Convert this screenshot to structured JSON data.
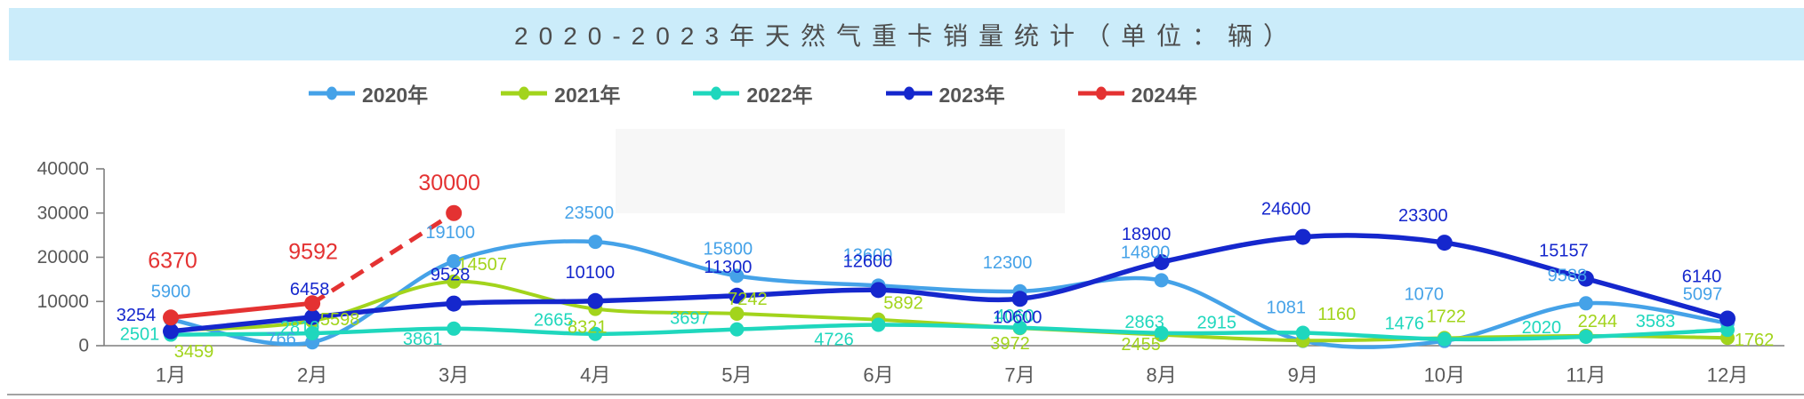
{
  "banner": {
    "title": "2020-2023年天然气重卡销量统计（单位：辆）",
    "bg_color": "#cbecfa",
    "text_color": "#4d4d4d"
  },
  "chart_data": {
    "type": "line",
    "title": "2020-2023年天然气重卡销量统计（单位：辆）",
    "categories": [
      "1月",
      "2月",
      "3月",
      "4月",
      "5月",
      "6月",
      "7月",
      "8月",
      "9月",
      "10月",
      "11月",
      "12月"
    ],
    "series": [
      {
        "name": "2020年",
        "color": "#45a2e8",
        "line_style": "solid",
        "values": [
          5900,
          766,
          19100,
          23500,
          15800,
          13600,
          12300,
          14800,
          1081,
          1070,
          9588,
          5097
        ]
      },
      {
        "name": "2021年",
        "color": "#a2d41c",
        "line_style": "solid",
        "values": [
          3459,
          5598,
          14507,
          8321,
          7242,
          5892,
          3972,
          2455,
          1160,
          1722,
          2244,
          1762
        ]
      },
      {
        "name": "2022年",
        "color": "#1fd7bd",
        "line_style": "solid",
        "values": [
          2501,
          2819,
          3861,
          2665,
          3697,
          4726,
          4060,
          2863,
          2915,
          1476,
          2020,
          3583
        ]
      },
      {
        "name": "2023年",
        "color": "#1527cd",
        "line_style": "solid",
        "values": [
          3254,
          6458,
          9528,
          10100,
          11300,
          12600,
          10600,
          18900,
          24600,
          23300,
          15157,
          6140
        ]
      },
      {
        "name": "2024年",
        "color": "#e43232",
        "line_style": "solid-then-dashed",
        "values": [
          6370,
          9592,
          30000
        ]
      }
    ],
    "xlabel": "",
    "ylabel": "",
    "ylim": [
      0,
      40000
    ],
    "yticks": [
      0,
      10000,
      20000,
      30000,
      40000
    ],
    "grid": false,
    "legend_position": "top",
    "data_labels_visible": true
  },
  "axis": {
    "text_color": "#595959",
    "line_color": "#7f7f7f"
  }
}
